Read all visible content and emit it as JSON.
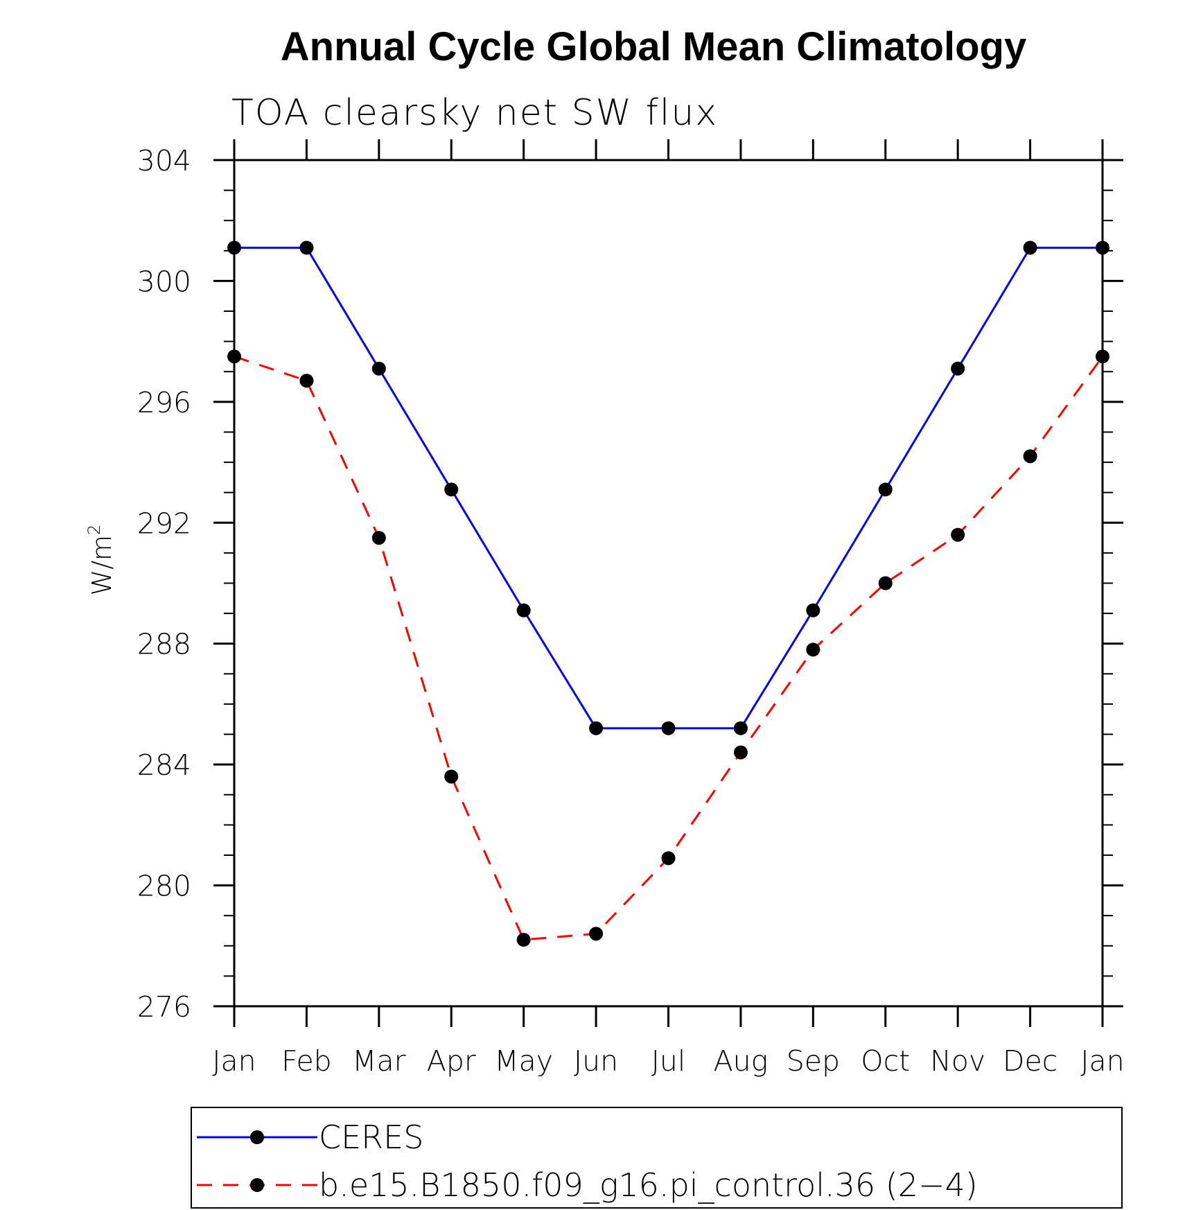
{
  "chart_data": {
    "type": "line",
    "title": "Annual Cycle Global Mean Climatology",
    "subtitle": "TOA clearsky net SW flux",
    "ylabel": "W/m",
    "ylabel_superscript": "2",
    "xlabel": "",
    "categories": [
      "Jan",
      "Feb",
      "Mar",
      "Apr",
      "May",
      "Jun",
      "Jul",
      "Aug",
      "Sep",
      "Oct",
      "Nov",
      "Dec",
      "Jan"
    ],
    "ylim": [
      276,
      304
    ],
    "yticks": [
      "276",
      "280",
      "284",
      "288",
      "292",
      "296",
      "300",
      "304"
    ],
    "grid": false,
    "legend_position": "bottom",
    "series": [
      {
        "name": "CERES",
        "color": "#0000ff",
        "line_style": "solid",
        "marker": "filled-circle",
        "values": [
          301.1,
          301.1,
          297.1,
          293.1,
          289.1,
          285.2,
          285.2,
          285.2,
          289.1,
          293.1,
          297.1,
          301.1,
          301.1
        ]
      },
      {
        "name": "b.e15.B1850.f09_g16.pi_control.36 (2−4)",
        "color": "#ff0000",
        "line_style": "dashed",
        "marker": "filled-circle",
        "values": [
          297.5,
          296.7,
          291.5,
          283.6,
          278.2,
          278.4,
          280.9,
          284.4,
          287.8,
          290.0,
          291.6,
          294.2,
          297.5
        ]
      }
    ]
  }
}
